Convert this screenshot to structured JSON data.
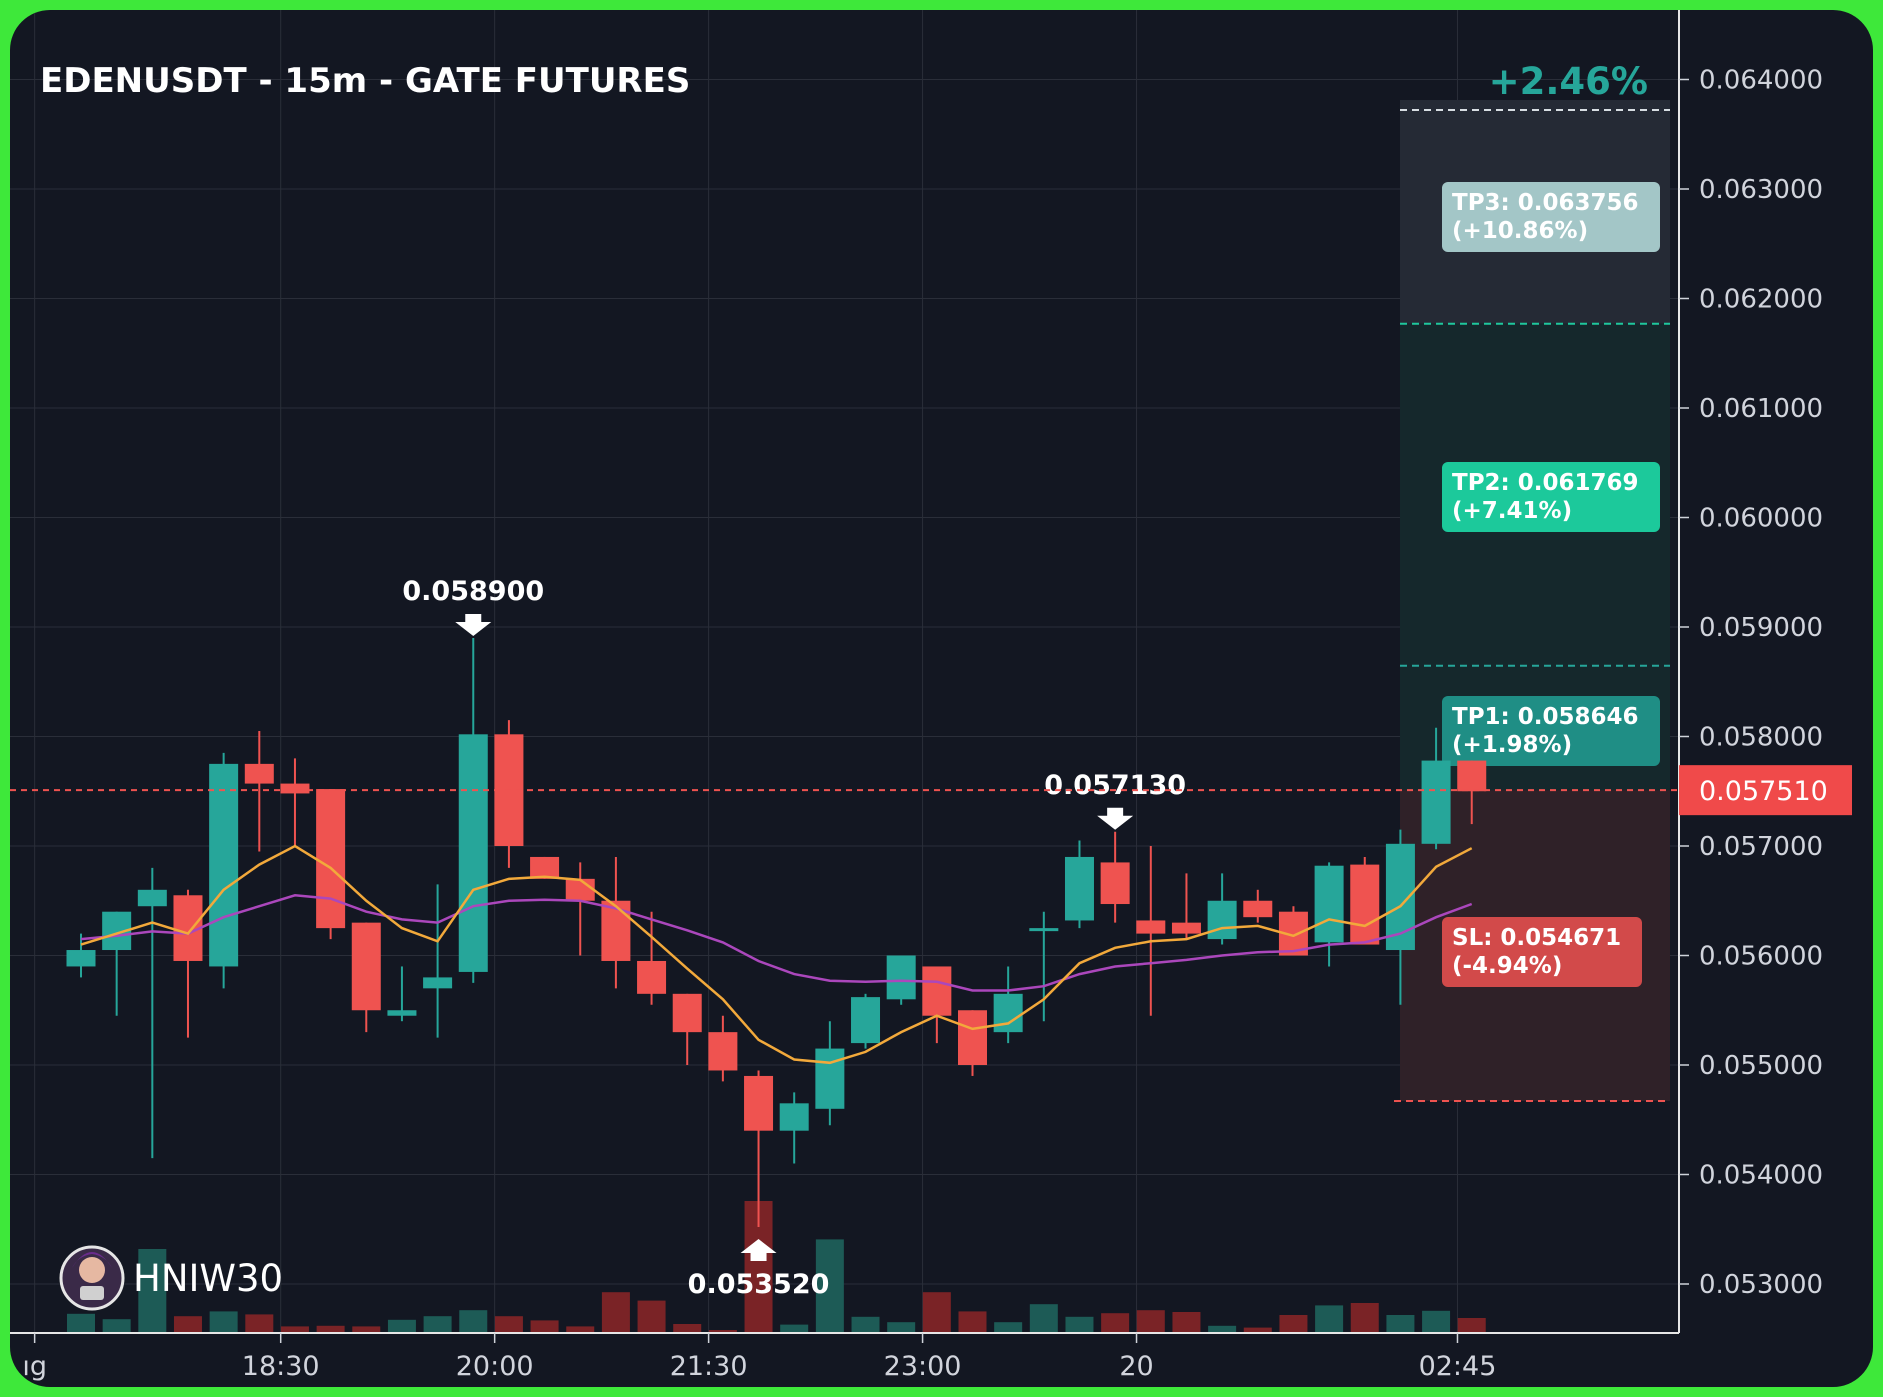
{
  "chart_data": {
    "type": "candlestick",
    "title": "EDENUSDT - 15m - GATE FUTURES",
    "pnl": "+2.46%",
    "watermark": "HNIW30",
    "y_range": [
      0.0525,
      0.0645
    ],
    "y_ticks": [
      "0.064000",
      "0.063000",
      "0.062000",
      "0.061000",
      "0.060000",
      "0.059000",
      "0.058000",
      "0.057000",
      "0.056000",
      "0.055000",
      "0.054000",
      "0.053000"
    ],
    "x_ticks": [
      {
        "label": "ıg",
        "index": -1.3
      },
      {
        "label": "18:30",
        "index": 5.6
      },
      {
        "label": "20:00",
        "index": 11.6
      },
      {
        "label": "21:30",
        "index": 17.6
      },
      {
        "label": "23:00",
        "index": 23.6
      },
      {
        "label": "20",
        "index": 29.6
      },
      {
        "label": "02:45",
        "index": 38.6
      }
    ],
    "current_price": "0.057510",
    "annotations": [
      {
        "label": "0.058900",
        "index": 11,
        "price": 0.0589,
        "dir": "down"
      },
      {
        "label": "0.057130",
        "index": 29,
        "price": 0.05713,
        "dir": "down"
      },
      {
        "label": "0.053520",
        "index": 19,
        "price": 0.05352,
        "dir": "up"
      }
    ],
    "levels": [
      {
        "name": "tp3",
        "label": "TP3: 0.063756",
        "pct": "(+10.86%)",
        "price": 0.063756
      },
      {
        "name": "tp2",
        "label": "TP2: 0.061769",
        "pct": "(+7.41%)",
        "price": 0.061769
      },
      {
        "name": "tp1",
        "label": "TP1: 0.058646",
        "pct": "(+1.98%)",
        "price": 0.058646
      },
      {
        "name": "sl",
        "label": "SL: 0.054671",
        "pct": "(-4.94%)",
        "price": 0.054671
      }
    ],
    "candles": [
      {
        "o": 0.0559,
        "h": 0.0562,
        "l": 0.0558,
        "c": 0.05605
      },
      {
        "o": 0.05605,
        "h": 0.0564,
        "l": 0.05545,
        "c": 0.0564
      },
      {
        "o": 0.05645,
        "h": 0.0568,
        "l": 0.05415,
        "c": 0.0566
      },
      {
        "o": 0.05655,
        "h": 0.0566,
        "l": 0.05525,
        "c": 0.05595
      },
      {
        "o": 0.0559,
        "h": 0.05785,
        "l": 0.0557,
        "c": 0.05775
      },
      {
        "o": 0.05775,
        "h": 0.05805,
        "l": 0.05695,
        "c": 0.05757
      },
      {
        "o": 0.05757,
        "h": 0.0578,
        "l": 0.057,
        "c": 0.05748
      },
      {
        "o": 0.05752,
        "h": 0.05752,
        "l": 0.05615,
        "c": 0.05625
      },
      {
        "o": 0.0563,
        "h": 0.0563,
        "l": 0.0553,
        "c": 0.0555
      },
      {
        "o": 0.05545,
        "h": 0.0559,
        "l": 0.0554,
        "c": 0.0555
      },
      {
        "o": 0.0557,
        "h": 0.05665,
        "l": 0.05525,
        "c": 0.0558
      },
      {
        "o": 0.05585,
        "h": 0.0589,
        "l": 0.05575,
        "c": 0.05802
      },
      {
        "o": 0.05802,
        "h": 0.05815,
        "l": 0.0568,
        "c": 0.057
      },
      {
        "o": 0.0569,
        "h": 0.0569,
        "l": 0.0567,
        "c": 0.0567
      },
      {
        "o": 0.0567,
        "h": 0.05685,
        "l": 0.056,
        "c": 0.0565
      },
      {
        "o": 0.0565,
        "h": 0.0569,
        "l": 0.0557,
        "c": 0.05595
      },
      {
        "o": 0.05595,
        "h": 0.0564,
        "l": 0.05555,
        "c": 0.05565
      },
      {
        "o": 0.05565,
        "h": 0.05565,
        "l": 0.055,
        "c": 0.0553
      },
      {
        "o": 0.0553,
        "h": 0.05545,
        "l": 0.05485,
        "c": 0.05495
      },
      {
        "o": 0.0549,
        "h": 0.05495,
        "l": 0.05352,
        "c": 0.0544
      },
      {
        "o": 0.0544,
        "h": 0.05475,
        "l": 0.0541,
        "c": 0.05465
      },
      {
        "o": 0.0546,
        "h": 0.0554,
        "l": 0.05445,
        "c": 0.05515
      },
      {
        "o": 0.0552,
        "h": 0.05565,
        "l": 0.05515,
        "c": 0.05562
      },
      {
        "o": 0.0556,
        "h": 0.056,
        "l": 0.05555,
        "c": 0.056
      },
      {
        "o": 0.0559,
        "h": 0.0559,
        "l": 0.0552,
        "c": 0.05545
      },
      {
        "o": 0.0555,
        "h": 0.0555,
        "l": 0.0549,
        "c": 0.055
      },
      {
        "o": 0.0553,
        "h": 0.0559,
        "l": 0.0552,
        "c": 0.05565
      },
      {
        "o": 0.05625,
        "h": 0.0564,
        "l": 0.0554,
        "c": 0.05625
      },
      {
        "o": 0.05632,
        "h": 0.05705,
        "l": 0.05625,
        "c": 0.0569
      },
      {
        "o": 0.05685,
        "h": 0.05713,
        "l": 0.0563,
        "c": 0.05647
      },
      {
        "o": 0.05632,
        "h": 0.057,
        "l": 0.05545,
        "c": 0.0562
      },
      {
        "o": 0.0563,
        "h": 0.05675,
        "l": 0.05615,
        "c": 0.0562
      },
      {
        "o": 0.05615,
        "h": 0.05675,
        "l": 0.0561,
        "c": 0.0565
      },
      {
        "o": 0.0565,
        "h": 0.0566,
        "l": 0.0563,
        "c": 0.05635
      },
      {
        "o": 0.0564,
        "h": 0.05645,
        "l": 0.056,
        "c": 0.056
      },
      {
        "o": 0.05612,
        "h": 0.05685,
        "l": 0.0559,
        "c": 0.05682
      },
      {
        "o": 0.05683,
        "h": 0.0569,
        "l": 0.0561,
        "c": 0.0561
      },
      {
        "o": 0.05605,
        "h": 0.05715,
        "l": 0.05555,
        "c": 0.05702
      },
      {
        "o": 0.05702,
        "h": 0.05808,
        "l": 0.05697,
        "c": 0.05778
      },
      {
        "o": 0.05778,
        "h": 0.05778,
        "l": 0.0572,
        "c": 0.0575
      }
    ],
    "volume": [
      0.32,
      0.23,
      1.4,
      0.28,
      0.36,
      0.31,
      0.11,
      0.12,
      0.11,
      0.22,
      0.28,
      0.38,
      0.28,
      0.21,
      0.11,
      0.68,
      0.54,
      0.15,
      0.05,
      2.2,
      0.14,
      1.56,
      0.27,
      0.18,
      0.68,
      0.36,
      0.18,
      0.48,
      0.27,
      0.33,
      0.38,
      0.35,
      0.12,
      0.09,
      0.3,
      0.46,
      0.5,
      0.3,
      0.37,
      0.25
    ],
    "ma_fast": [
      0.0561,
      0.0562,
      0.0563,
      0.0562,
      0.0566,
      0.05683,
      0.057,
      0.0568,
      0.0565,
      0.05625,
      0.05613,
      0.0566,
      0.0567,
      0.05672,
      0.05669,
      0.05645,
      0.05617,
      0.05588,
      0.0556,
      0.05523,
      0.05505,
      0.05502,
      0.05512,
      0.0553,
      0.05545,
      0.05533,
      0.05538,
      0.0556,
      0.05593,
      0.05607,
      0.05613,
      0.05615,
      0.05625,
      0.05627,
      0.05618,
      0.05633,
      0.05627,
      0.05645,
      0.05681,
      0.05698
    ],
    "ma_slow": [
      0.05615,
      0.05618,
      0.05622,
      0.0562,
      0.05635,
      0.05645,
      0.05655,
      0.05652,
      0.0564,
      0.05633,
      0.0563,
      0.05645,
      0.0565,
      0.05651,
      0.0565,
      0.05643,
      0.05633,
      0.05623,
      0.05612,
      0.05595,
      0.05583,
      0.05577,
      0.05576,
      0.05577,
      0.05576,
      0.05568,
      0.05568,
      0.05572,
      0.05583,
      0.0559,
      0.05593,
      0.05596,
      0.056,
      0.05603,
      0.05604,
      0.0561,
      0.05612,
      0.0562,
      0.05635,
      0.05647
    ]
  }
}
